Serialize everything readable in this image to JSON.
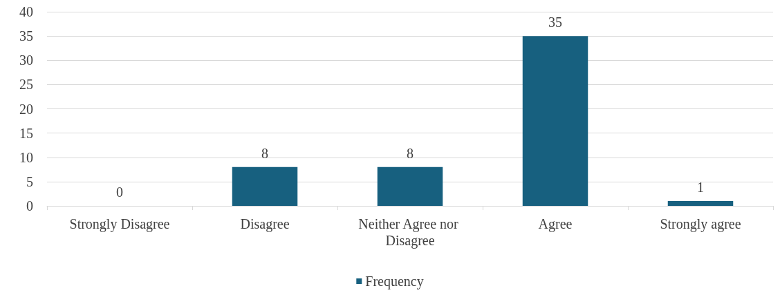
{
  "chart_data": {
    "type": "bar",
    "categories": [
      "Strongly Disagree",
      "Disagree",
      "Neither Agree nor Disagree",
      "Agree",
      "Strongly agree"
    ],
    "series": [
      {
        "name": "Frequency",
        "color": "#17607f",
        "values": [
          0,
          8,
          8,
          35,
          1
        ]
      }
    ],
    "ylim": [
      0,
      40
    ],
    "yticks": [
      0,
      5,
      10,
      15,
      20,
      25,
      30,
      35,
      40
    ],
    "grid": "y",
    "legend": "bottom",
    "data_labels": true
  }
}
